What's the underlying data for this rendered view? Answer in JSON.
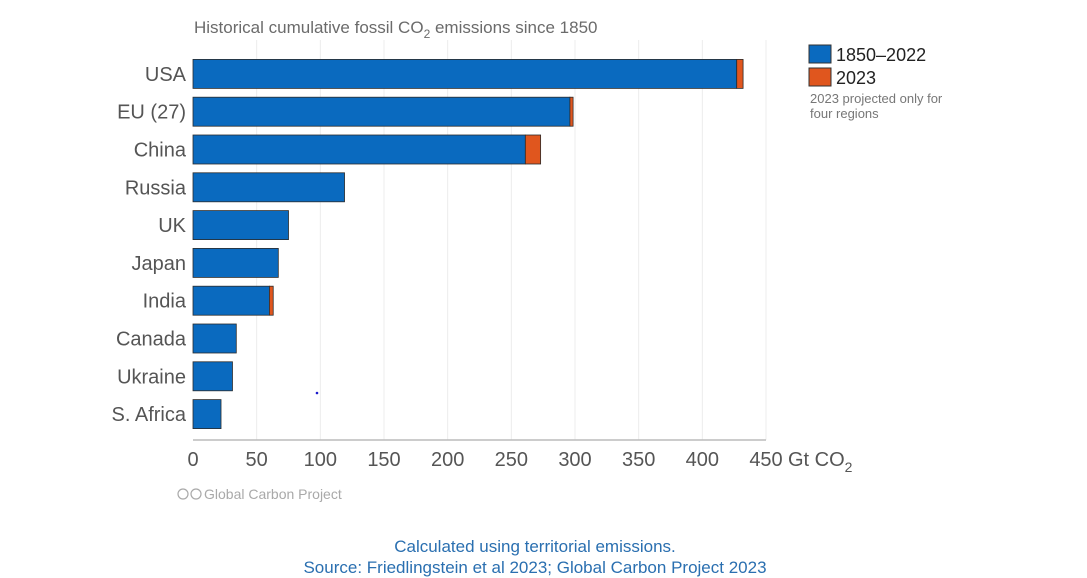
{
  "chart_data": {
    "type": "bar",
    "orientation": "horizontal",
    "stacked": true,
    "title": "Historical cumulative fossil CO",
    "title_sub": "2",
    "title_tail": " emissions since 1850",
    "categories": [
      "USA",
      "EU (27)",
      "China",
      "Russia",
      "UK",
      "Japan",
      "India",
      "Canada",
      "Ukraine",
      "S. Africa"
    ],
    "series": [
      {
        "name": "1850–2022",
        "color": "#0a6abf",
        "values": [
          427,
          296,
          261,
          119,
          75,
          67,
          60,
          34,
          31,
          22
        ]
      },
      {
        "name": "2023",
        "color": "#e0561e",
        "values": [
          5,
          2.5,
          12,
          0,
          0,
          0,
          3,
          0,
          0,
          0
        ]
      }
    ],
    "xlim": [
      0,
      450
    ],
    "xticks": [
      "0",
      "50",
      "100",
      "150",
      "200",
      "250",
      "300",
      "350",
      "400",
      "450"
    ],
    "xunit": "Gt CO",
    "xunit_sub": "2",
    "grid": true,
    "legend_position": "top-right",
    "legend_note": [
      "2023 projected only for",
      "four regions"
    ]
  },
  "credit": "Global Carbon Project",
  "captions": [
    "Calculated using territorial emissions.",
    "Source: Friedlingstein et al 2023; Global Carbon Project 2023"
  ]
}
